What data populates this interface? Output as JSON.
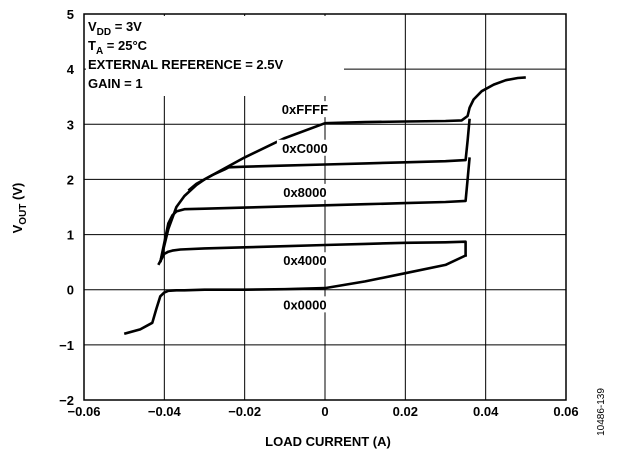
{
  "chart_data": {
    "type": "line",
    "xlabel": "LOAD CURRENT (A)",
    "ylabel_main": "V",
    "ylabel_sub": "OUT",
    "ylabel_unit": " (V)",
    "xlim": [
      -0.06,
      0.06
    ],
    "ylim": [
      -2,
      5
    ],
    "x_ticks": [
      "−0.06",
      "−0.04",
      "−0.02",
      "0",
      "0.02",
      "0.04",
      "0.06"
    ],
    "y_ticks": [
      "−2",
      "−1",
      "0",
      "1",
      "2",
      "3",
      "4",
      "5"
    ],
    "grid": true,
    "annotations": [
      {
        "main": "V",
        "sub": "DD",
        "rest": " = 3V"
      },
      {
        "main": "T",
        "sub": "A",
        "rest": " = 25°C"
      },
      {
        "main": "EXTERNAL REFERENCE = 2.5V",
        "sub": "",
        "rest": ""
      },
      {
        "main": "GAIN = 1",
        "sub": "",
        "rest": ""
      }
    ],
    "figure_number": "10486-139",
    "series": [
      {
        "name": "0xFFFF",
        "x": [
          -0.034,
          -0.032,
          -0.03,
          -0.025,
          -0.02,
          -0.01,
          0.0,
          0.01,
          0.02,
          0.03,
          0.034,
          0.0355,
          0.036,
          0.037,
          0.039,
          0.042,
          0.045,
          0.048,
          0.05
        ],
        "y": [
          1.8,
          1.92,
          2.0,
          2.2,
          2.4,
          2.75,
          3.02,
          3.04,
          3.05,
          3.06,
          3.07,
          3.15,
          3.3,
          3.45,
          3.6,
          3.72,
          3.8,
          3.84,
          3.85
        ]
      },
      {
        "name": "0xC000",
        "x": [
          -0.041,
          -0.039,
          -0.037,
          -0.035,
          -0.032,
          -0.03,
          -0.028,
          -0.025,
          -0.024,
          -0.02,
          -0.01,
          0.0,
          0.01,
          0.02,
          0.03,
          0.035,
          0.0355,
          0.036
        ],
        "y": [
          0.5,
          1.1,
          1.5,
          1.7,
          1.9,
          2.0,
          2.08,
          2.18,
          2.22,
          2.23,
          2.25,
          2.27,
          2.29,
          2.31,
          2.33,
          2.35,
          2.7,
          3.1
        ]
      },
      {
        "name": "0x8000",
        "x": [
          -0.041,
          -0.039,
          -0.038,
          -0.037,
          -0.035,
          -0.03,
          -0.02,
          -0.01,
          0.0,
          0.01,
          0.02,
          0.03,
          0.035,
          0.0355,
          0.036
        ],
        "y": [
          0.5,
          1.2,
          1.35,
          1.42,
          1.46,
          1.47,
          1.49,
          1.51,
          1.53,
          1.55,
          1.57,
          1.59,
          1.61,
          2.0,
          2.4
        ]
      },
      {
        "name": "0x4000",
        "x": [
          -0.0415,
          -0.04,
          -0.039,
          -0.038,
          -0.036,
          -0.03,
          -0.02,
          -0.01,
          0.0,
          0.01,
          0.02,
          0.03,
          0.035,
          0.035
        ],
        "y": [
          0.45,
          0.65,
          0.69,
          0.71,
          0.73,
          0.75,
          0.77,
          0.79,
          0.81,
          0.83,
          0.85,
          0.86,
          0.87,
          0.6
        ]
      },
      {
        "name": "0x0000",
        "x": [
          -0.05,
          -0.046,
          -0.043,
          -0.042,
          -0.041,
          -0.04,
          -0.039,
          -0.037,
          -0.035,
          -0.03,
          -0.02,
          -0.01,
          0.0,
          0.01,
          0.02,
          0.03,
          0.035,
          0.035
        ],
        "y": [
          -0.8,
          -0.72,
          -0.6,
          -0.35,
          -0.12,
          -0.05,
          -0.02,
          -0.01,
          -0.01,
          0.0,
          0.0,
          0.01,
          0.03,
          0.15,
          0.3,
          0.45,
          0.62,
          0.6
        ]
      }
    ],
    "series_label_positions_data": [
      {
        "name": "0xFFFF",
        "x": -0.005,
        "y": 3.22
      },
      {
        "name": "0xC000",
        "x": -0.005,
        "y": 2.52
      },
      {
        "name": "0x8000",
        "x": -0.005,
        "y": 1.72
      },
      {
        "name": "0x4000",
        "x": -0.005,
        "y": 0.48
      },
      {
        "name": "0x0000",
        "x": -0.005,
        "y": -0.32
      }
    ]
  }
}
